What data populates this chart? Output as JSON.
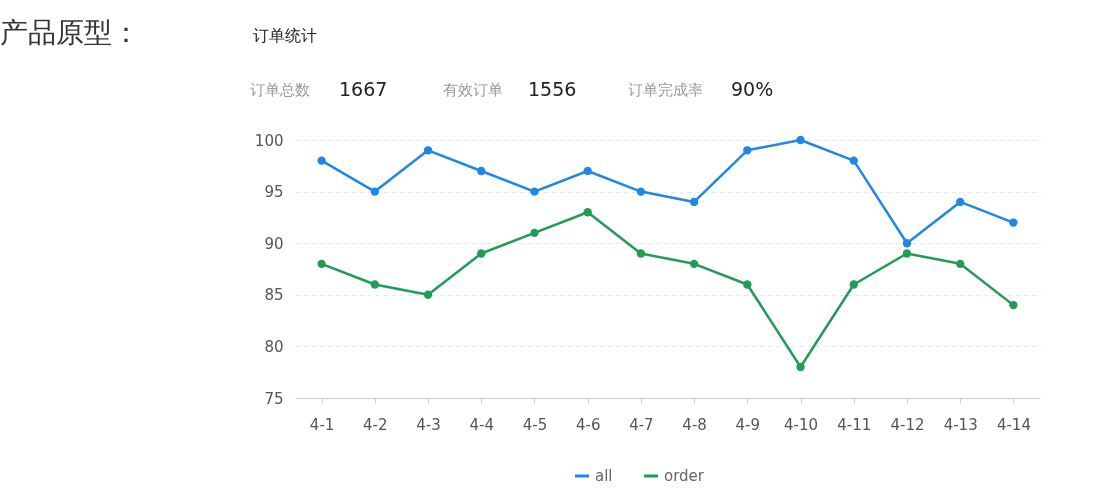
{
  "chart_data": {
    "type": "line",
    "title": "订单统计",
    "annotations": [
      "产品原型：",
      "订单总数",
      "1667",
      "有效订单",
      "1556",
      "订单完成率",
      "90%"
    ],
    "categories": [
      "4-1",
      "4-2",
      "4-3",
      "4-4",
      "4-5",
      "4-6",
      "4-7",
      "4-8",
      "4-9",
      "4-10",
      "4-11",
      "4-12",
      "4-13",
      "4-14"
    ],
    "series": [
      {
        "name": "all",
        "color": "#1e88e5",
        "values": [
          98,
          95,
          99,
          97,
          95,
          97,
          95,
          94,
          99,
          100,
          98,
          90,
          94,
          92
        ]
      },
      {
        "name": "order",
        "color": "#1f9d55",
        "values": [
          88,
          86,
          85,
          89,
          91,
          93,
          89,
          88,
          86,
          78,
          86,
          89,
          88,
          84
        ]
      }
    ],
    "ylim": [
      75,
      100
    ],
    "yticks": [
      75,
      80,
      85,
      90,
      95,
      100
    ],
    "grid": "y",
    "legend": "bottom",
    "marker": "circle",
    "line_style": "solid"
  }
}
